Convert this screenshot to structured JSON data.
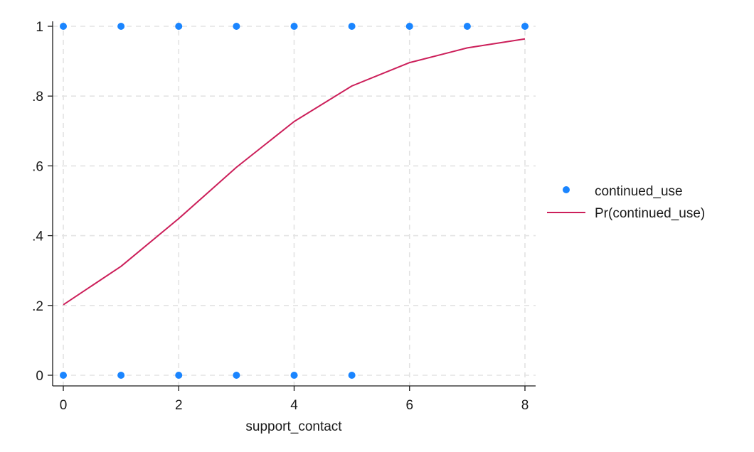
{
  "chart_data": {
    "type": "scatter",
    "xlabel": "support_contact",
    "ylabel": "",
    "xlim": [
      0,
      8
    ],
    "ylim": [
      0,
      1
    ],
    "x_ticks": [
      0,
      2,
      4,
      6,
      8
    ],
    "x_tick_labels": [
      "0",
      "2",
      "4",
      "6",
      "8"
    ],
    "y_ticks": [
      0,
      0.2,
      0.4,
      0.6,
      0.8,
      1
    ],
    "y_tick_labels": [
      "0",
      ".2",
      ".4",
      ".6",
      ".8",
      "1"
    ],
    "grid": true,
    "legend_position": "right",
    "series": [
      {
        "name": "continued_use",
        "kind": "scatter",
        "color": "#1a85ff",
        "points": [
          [
            0,
            1
          ],
          [
            1,
            1
          ],
          [
            2,
            1
          ],
          [
            3,
            1
          ],
          [
            4,
            1
          ],
          [
            5,
            1
          ],
          [
            6,
            1
          ],
          [
            7,
            1
          ],
          [
            8,
            1
          ],
          [
            0,
            0
          ],
          [
            1,
            0
          ],
          [
            2,
            0
          ],
          [
            3,
            0
          ],
          [
            4,
            0
          ],
          [
            5,
            0
          ]
        ]
      },
      {
        "name": "Pr(continued_use)",
        "kind": "line",
        "color": "#cc1f5a",
        "x": [
          0,
          1,
          2,
          3,
          4,
          5,
          6,
          7,
          8
        ],
        "y": [
          0.202,
          0.312,
          0.449,
          0.596,
          0.727,
          0.829,
          0.896,
          0.938,
          0.964
        ]
      }
    ]
  }
}
